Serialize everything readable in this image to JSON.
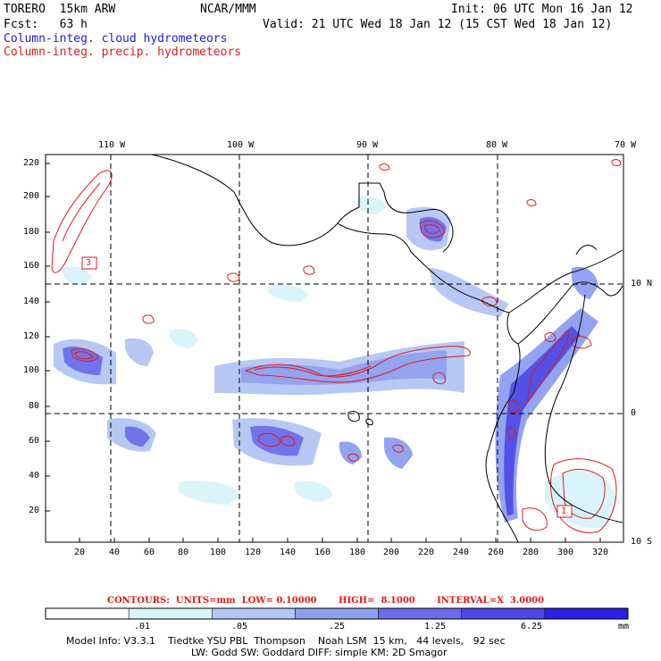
{
  "header": {
    "model": "TORERO  15km ARW",
    "org": "NCAR/MMM",
    "init": "Init: 06 UTC Mon 16 Jan 12",
    "fcst": "Fcst:   63 h",
    "valid": "Valid: 21 UTC Wed 18 Jan 12 (15 CST Wed 18 Jan 12)",
    "legend_cloud": "Column-integ. cloud hydrometeors",
    "legend_precip": "Column-integ. precip. hydrometeors"
  },
  "colors": {
    "cloud_contour": "#1a1ae6",
    "precip_contour": "#e01a1a",
    "coast": "#000000"
  },
  "map": {
    "top_lon_labels": [
      "110 W",
      "100 W",
      "90 W",
      "80 W",
      "70 W"
    ],
    "right_lat_labels": [
      "10 N",
      "0",
      "10 S"
    ],
    "left_ticks": [
      "220",
      "200",
      "180",
      "160",
      "140",
      "120",
      "100",
      "80",
      "60",
      "40",
      "20"
    ],
    "bottom_ticks": [
      "20",
      "40",
      "60",
      "80",
      "100",
      "120",
      "140",
      "160",
      "180",
      "200",
      "220",
      "240",
      "260",
      "280",
      "300",
      "320"
    ],
    "box_labels": [
      "3",
      "1"
    ]
  },
  "contours": {
    "text": "CONTOURS:  UNITS=mm  LOW= 0.10000       HIGH=  8.1000       INTERVAL=X  3.0000"
  },
  "colorbar": {
    "labels": [
      ".01",
      ".05",
      ".25",
      "1.25",
      "6.25"
    ],
    "unit": "mm",
    "bins": [
      {
        "color": "#ffffff"
      },
      {
        "color": "#d8f4fb"
      },
      {
        "color": "#b4c6f5"
      },
      {
        "color": "#8f9ff0"
      },
      {
        "color": "#6a6cea"
      },
      {
        "color": "#4a48e6"
      },
      {
        "color": "#2a1ee8"
      }
    ]
  },
  "footer": {
    "line1": "Model Info: V3.3.1    Tiedtke YSU PBL  Thompson    Noah LSM  15 km,   44 levels,   92 sec",
    "line2": "LW: Godd SW: Goddard DIFF: simple KM: 2D Smagor"
  }
}
